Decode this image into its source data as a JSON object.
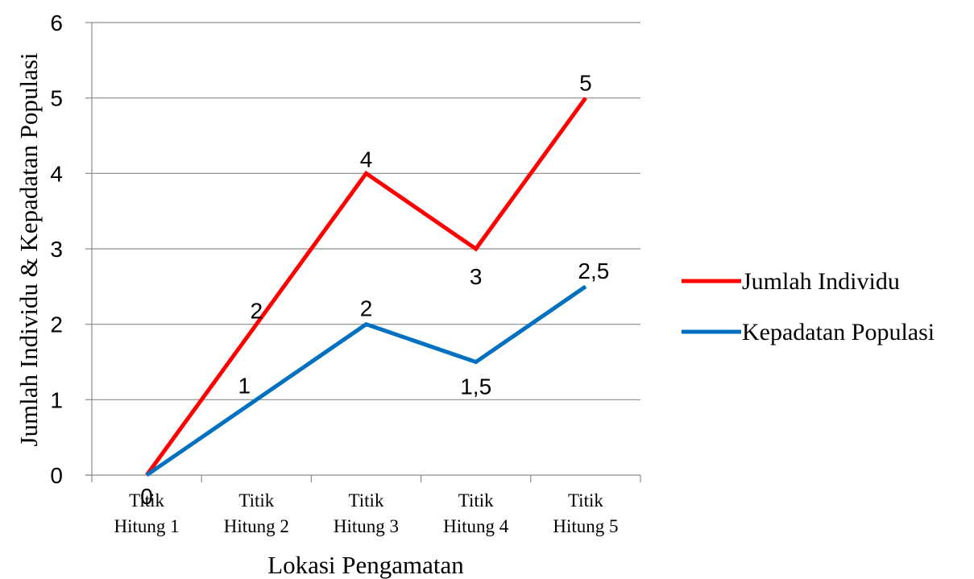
{
  "chart_data": {
    "type": "line",
    "title": "",
    "xlabel": "Lokasi Pengamatan",
    "ylabel": "Jumlah Individu & Kepadatan Populasi",
    "categories": [
      [
        "Titik",
        "Hitung 1"
      ],
      [
        "Titik",
        "Hitung 2"
      ],
      [
        "Titik",
        "Hitung 3"
      ],
      [
        "Titik",
        "Hitung 4"
      ],
      [
        "Titik",
        "Hitung 5"
      ]
    ],
    "ylim": [
      0,
      6
    ],
    "yticks": [
      0,
      1,
      2,
      3,
      4,
      5,
      6
    ],
    "grid": true,
    "legend_position": "right",
    "series": [
      {
        "name": "Jumlah Individu",
        "color": "#ff0000",
        "values": [
          0,
          2,
          4,
          3,
          5
        ],
        "labels": [
          "0",
          "2",
          "4",
          "3",
          "5"
        ]
      },
      {
        "name": "Kepadatan Populasi",
        "color": "#0070c0",
        "values": [
          0,
          1,
          2,
          1.5,
          2.5
        ],
        "labels": [
          "0",
          "1",
          "2",
          "1,5",
          "2,5"
        ]
      }
    ]
  }
}
